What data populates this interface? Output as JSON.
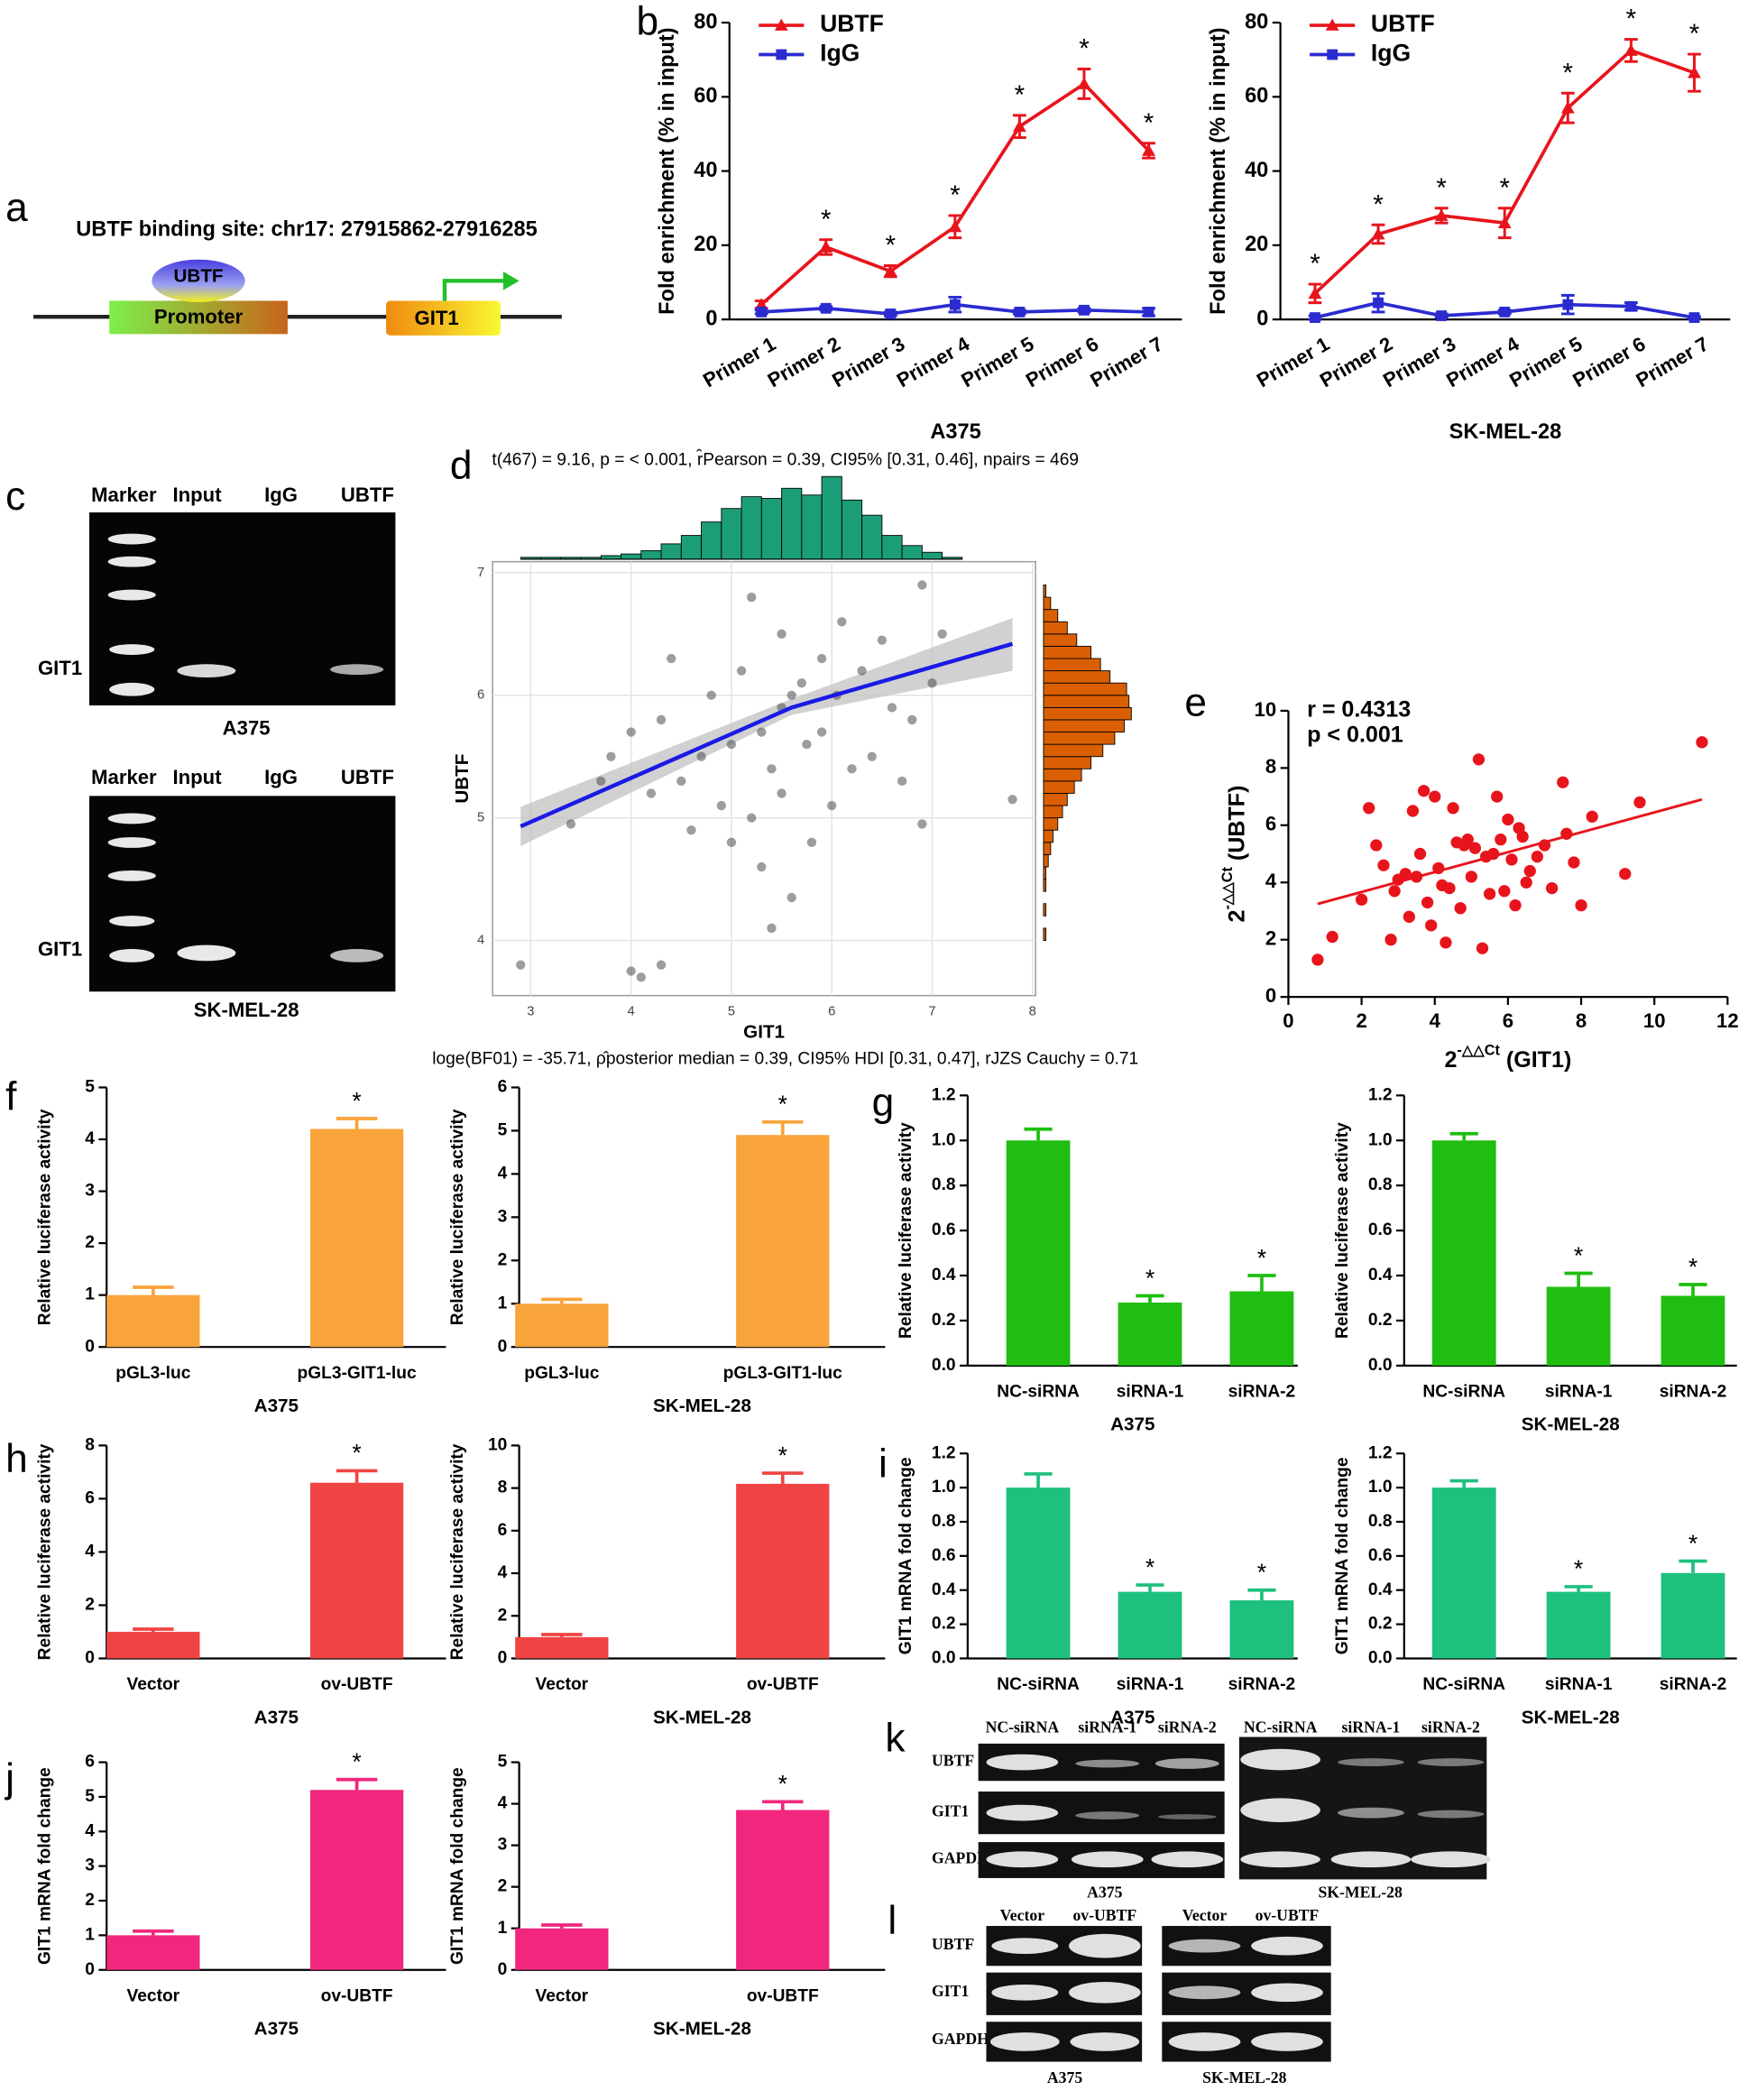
{
  "panel_letters": {
    "a": "a",
    "b": "b",
    "c": "c",
    "d": "d",
    "e": "e",
    "f": "f",
    "g": "g",
    "h": "h",
    "i": "i",
    "j": "j",
    "k": "k",
    "l": "l"
  },
  "diagram_a": {
    "title": "UBTF binding site: chr17: 27915862-27916285",
    "factor": "UBTF",
    "promoter": "Promoter",
    "gene": "GIT1"
  },
  "gel_c": [
    {
      "lanes": [
        "Marker",
        "Input",
        "IgG",
        "UBTF"
      ],
      "band_label": "GIT1",
      "cell_line": "A375"
    },
    {
      "lanes": [
        "Marker",
        "Input",
        "IgG",
        "UBTF"
      ],
      "band_label": "GIT1",
      "cell_line": "SK-MEL-28"
    }
  ],
  "blot_k": {
    "lanes": [
      "NC-siRNA",
      "siRNA-1",
      "siRNA-2"
    ],
    "rows": [
      "UBTF",
      "GIT1",
      "GAPDH"
    ],
    "cell_lines": [
      "A375",
      "SK-MEL-28"
    ]
  },
  "blot_l": {
    "lanes": [
      "Vector",
      "ov-UBTF"
    ],
    "rows": [
      "UBTF",
      "GIT1",
      "GAPDH"
    ],
    "cell_lines": [
      "A375",
      "SK-MEL-28"
    ]
  },
  "chart_data": [
    {
      "type": "line",
      "y_label": "Fold enrichment (% in input)",
      "subtitle": "A375",
      "legend": "upper left",
      "categories": [
        "Primer 1",
        "Primer 2",
        "Primer 3",
        "Primer 4",
        "Primer 5",
        "Primer 6",
        "Primer 7"
      ],
      "ylim": [
        0,
        80
      ],
      "yticks": [
        0,
        20,
        40,
        60,
        80
      ],
      "series": [
        {
          "name": "UBTF",
          "color": "#e8141c",
          "marker": "triangle",
          "values": [
            4,
            19.5,
            13,
            25,
            52,
            63.5,
            45.5
          ],
          "errors": [
            1,
            2,
            1.5,
            3,
            3,
            4,
            2
          ],
          "sig_labels": [
            null,
            "*",
            "*",
            "*",
            "*",
            "*",
            "*"
          ]
        },
        {
          "name": "IgG",
          "color": "#2b2bd0",
          "marker": "square",
          "values": [
            2,
            3,
            1.5,
            4,
            2,
            2.5,
            2
          ],
          "errors": [
            0.5,
            0.5,
            0.5,
            2,
            0.5,
            0.5,
            1
          ]
        }
      ]
    },
    {
      "type": "line",
      "y_label": "Fold enrichment (% in input)",
      "subtitle": "SK-MEL-28",
      "legend": "upper left",
      "categories": [
        "Primer 1",
        "Primer 2",
        "Primer 3",
        "Primer 4",
        "Primer 5",
        "Primer 6",
        "Primer 7"
      ],
      "ylim": [
        0,
        80
      ],
      "yticks": [
        0,
        20,
        40,
        60,
        80
      ],
      "series": [
        {
          "name": "UBTF",
          "color": "#e8141c",
          "marker": "triangle",
          "values": [
            7,
            23,
            28,
            26,
            57,
            72.5,
            66.5
          ],
          "errors": [
            2.5,
            2.5,
            2,
            4,
            4,
            3,
            5
          ],
          "sig_labels": [
            "*",
            "*",
            "*",
            "*",
            "*",
            "*",
            "*"
          ]
        },
        {
          "name": "IgG",
          "color": "#2b2bd0",
          "marker": "square",
          "values": [
            0.5,
            4.5,
            1,
            2,
            4,
            3.5,
            0.5
          ],
          "errors": [
            0.5,
            2.5,
            0.5,
            0.5,
            2.5,
            1,
            0.3
          ]
        }
      ]
    },
    {
      "type": "scatter_marginal",
      "title": "t(467) = 9.16, p = < 0.001, r̂Pearson = 0.39, CI95% [0.31, 0.46], npairs = 469",
      "caption": "loge(BF01) = -35.71, ρ̂posterior median = 0.39, CI95% HDI [0.31, 0.47], rJZS Cauchy = 0.71",
      "x_label": "GIT1",
      "y_label": "UBTF",
      "xlim": [
        2.62,
        8.03
      ],
      "ylim": [
        3.55,
        7.09
      ],
      "xticks": [
        3,
        4,
        5,
        6,
        7,
        8
      ],
      "yticks": [
        4,
        5,
        6,
        7
      ],
      "grid": true,
      "color": "#4d4d4d",
      "x": [
        2.9,
        4.0,
        4.1,
        4.3,
        3.4,
        5.4,
        5.6,
        5.0,
        5.2,
        4.5,
        4.7,
        5.0,
        5.3,
        5.5,
        5.7,
        5.9,
        6.1,
        5.5,
        5.2,
        6.5,
        6.9,
        7.1,
        7.0,
        6.8,
        6.2,
        6.0,
        5.8,
        6.4,
        4.8,
        4.3,
        4.0,
        3.8,
        4.2,
        4.6,
        5.6,
        5.9,
        5.4,
        5.1,
        6.3,
        6.6,
        7.8,
        6.9,
        5.3,
        4.9,
        5.75,
        6.05,
        4.4,
        5.5,
        6.7,
        3.7
      ],
      "y": [
        3.8,
        3.75,
        3.7,
        3.8,
        4.95,
        4.1,
        4.35,
        4.8,
        5.0,
        5.3,
        5.5,
        5.6,
        5.7,
        5.9,
        6.1,
        6.3,
        6.6,
        6.5,
        6.8,
        6.45,
        6.9,
        6.5,
        6.1,
        5.8,
        5.4,
        5.1,
        4.8,
        5.5,
        6.0,
        5.8,
        5.7,
        5.5,
        5.2,
        4.9,
        6.0,
        5.7,
        5.4,
        6.2,
        6.2,
        5.9,
        5.15,
        4.95,
        4.6,
        5.1,
        5.6,
        6.0,
        6.3,
        5.2,
        5.3,
        5.3
      ],
      "fit": {
        "color": "#1a1ae6",
        "band_color": "#bdbdbd",
        "x": [
          2.9,
          5.6,
          7.8
        ],
        "y": [
          4.93,
          5.9,
          6.42
        ],
        "lower": [
          4.77,
          5.84,
          6.2
        ],
        "upper": [
          5.09,
          5.97,
          6.63
        ]
      },
      "top_hist": {
        "color": "#1b9e77",
        "bins": [
          2.9,
          3.1,
          3.3,
          3.5,
          3.7,
          3.9,
          4.1,
          4.3,
          4.5,
          4.7,
          4.9,
          5.1,
          5.3,
          5.5,
          5.7,
          5.9,
          6.1,
          6.3,
          6.5,
          6.7,
          6.9,
          7.1,
          7.3
        ],
        "counts": [
          1,
          1,
          1,
          1,
          2,
          3,
          5,
          9,
          14,
          22,
          30,
          37,
          36,
          42,
          38,
          49,
          35,
          26,
          14,
          8,
          4,
          1
        ]
      },
      "right_hist": {
        "color": "#d95f02",
        "bins": [
          4.0,
          4.1,
          4.2,
          4.3,
          4.4,
          4.5,
          4.6,
          4.7,
          4.8,
          4.9,
          5.0,
          5.1,
          5.2,
          5.3,
          5.4,
          5.5,
          5.6,
          5.7,
          5.8,
          5.9,
          6.0,
          6.1,
          6.2,
          6.3,
          6.4,
          6.5,
          6.6,
          6.7,
          6.8,
          6.9
        ],
        "counts": [
          1,
          0,
          1,
          0,
          1,
          1,
          2,
          3,
          4,
          6,
          8,
          10,
          13,
          16,
          20,
          25,
          30,
          34,
          37,
          36,
          35,
          28,
          24,
          20,
          14,
          10,
          6,
          3,
          1
        ]
      }
    },
    {
      "type": "scatter",
      "color": "#e8141c",
      "annotations": [
        "r = 0.4313",
        "p < 0.001"
      ],
      "x_label": {
        "base": "2",
        "sup": "-△△Ct",
        "rest": " (GIT1)"
      },
      "y_label": {
        "base": "2",
        "sup": "-△△Ct",
        "rest": " (UBTF)"
      },
      "xlim": [
        0,
        12
      ],
      "ylim": [
        0,
        10
      ],
      "xticks": [
        0,
        2,
        4,
        6,
        8,
        10,
        12
      ],
      "yticks": [
        0,
        2,
        4,
        6,
        8,
        10
      ],
      "x": [
        0.8,
        1.2,
        2.0,
        2.2,
        2.4,
        2.6,
        2.8,
        3.0,
        3.2,
        3.3,
        3.4,
        3.5,
        3.6,
        3.7,
        3.8,
        4.0,
        4.1,
        4.2,
        4.3,
        4.5,
        4.6,
        4.7,
        4.8,
        4.9,
        5.0,
        5.1,
        5.2,
        5.3,
        5.4,
        5.5,
        5.6,
        5.7,
        5.8,
        5.9,
        6.0,
        6.1,
        6.2,
        6.4,
        6.5,
        6.6,
        6.8,
        7.0,
        7.2,
        7.5,
        7.6,
        7.8,
        8.0,
        8.3,
        9.2,
        9.6,
        11.3,
        2.9,
        3.9,
        4.4,
        6.3
      ],
      "y": [
        1.3,
        2.1,
        3.4,
        6.6,
        5.3,
        4.6,
        2.0,
        4.1,
        4.3,
        2.8,
        6.5,
        4.2,
        5.0,
        7.2,
        3.3,
        7.0,
        4.5,
        3.9,
        1.9,
        6.6,
        5.4,
        3.1,
        5.3,
        5.5,
        4.2,
        5.2,
        8.3,
        1.7,
        4.9,
        3.6,
        5.0,
        7.0,
        5.5,
        3.7,
        6.2,
        4.8,
        3.2,
        5.6,
        4.0,
        4.4,
        4.9,
        5.3,
        3.8,
        7.5,
        5.7,
        4.7,
        3.2,
        6.3,
        4.3,
        6.8,
        8.9,
        3.7,
        2.5,
        3.8,
        5.9
      ],
      "fit": {
        "x": [
          0.8,
          11.3
        ],
        "y": [
          3.25,
          6.9
        ]
      }
    },
    {
      "type": "bar",
      "y_label": "Relative luciferase activity",
      "subtitle": "A375",
      "color": "#f9a33b",
      "categories": [
        "pGL3-luc",
        "pGL3-GIT1-luc"
      ],
      "values": [
        1.0,
        4.2
      ],
      "errors": [
        0.15,
        0.2
      ],
      "sig_labels": [
        null,
        "*"
      ],
      "ylim": [
        0,
        5
      ],
      "yticks": [
        0,
        1,
        2,
        3,
        4,
        5
      ]
    },
    {
      "type": "bar",
      "y_label": "Relative luciferase activity",
      "subtitle": "SK-MEL-28",
      "color": "#f9a33b",
      "categories": [
        "pGL3-luc",
        "pGL3-GIT1-luc"
      ],
      "values": [
        1.0,
        4.9
      ],
      "errors": [
        0.1,
        0.3
      ],
      "sig_labels": [
        null,
        "*"
      ],
      "ylim": [
        0,
        6
      ],
      "yticks": [
        0,
        1,
        2,
        3,
        4,
        5,
        6
      ]
    },
    {
      "type": "bar",
      "y_label": "Relative luciferase activity",
      "subtitle": "A375",
      "color": "#1fbe10",
      "categories": [
        "NC-siRNA",
        "siRNA-1",
        "siRNA-2"
      ],
      "values": [
        1.0,
        0.28,
        0.33
      ],
      "errors": [
        0.05,
        0.03,
        0.07
      ],
      "sig_labels": [
        null,
        "*",
        "*"
      ],
      "ylim": [
        0,
        1.2
      ],
      "yticks": [
        {
          "value": 0,
          "label": "0.0"
        },
        0.2,
        0.4,
        0.6,
        0.8,
        {
          "value": 1,
          "label": "1.0"
        },
        1.2
      ]
    },
    {
      "type": "bar",
      "y_label": "Relative luciferase activity",
      "subtitle": "SK-MEL-28",
      "color": "#1fbe10",
      "categories": [
        "NC-siRNA",
        "siRNA-1",
        "siRNA-2"
      ],
      "values": [
        1.0,
        0.35,
        0.31
      ],
      "errors": [
        0.03,
        0.06,
        0.05
      ],
      "sig_labels": [
        null,
        "*",
        "*"
      ],
      "ylim": [
        0,
        1.2
      ],
      "yticks": [
        {
          "value": 0,
          "label": "0.0"
        },
        0.2,
        0.4,
        0.6,
        0.8,
        {
          "value": 1,
          "label": "1.0"
        },
        1.2
      ]
    },
    {
      "type": "bar",
      "y_label": "Relative luciferase activity",
      "subtitle": "A375",
      "color": "#f04444",
      "categories": [
        "Vector",
        "ov-UBTF"
      ],
      "values": [
        1.0,
        6.6
      ],
      "errors": [
        0.1,
        0.45
      ],
      "sig_labels": [
        null,
        "*"
      ],
      "ylim": [
        0,
        8
      ],
      "yticks": [
        0,
        2,
        4,
        6,
        8
      ]
    },
    {
      "type": "bar",
      "y_label": "Relative luciferase activity",
      "subtitle": "SK-MEL-28",
      "color": "#f04444",
      "categories": [
        "Vector",
        "ov-UBTF"
      ],
      "values": [
        1.0,
        8.2
      ],
      "errors": [
        0.12,
        0.5
      ],
      "sig_labels": [
        null,
        "*"
      ],
      "ylim": [
        0,
        10
      ],
      "yticks": [
        0,
        2,
        4,
        6,
        8,
        10
      ]
    },
    {
      "type": "bar",
      "y_label": "GIT1 mRNA fold change",
      "subtitle": "A375",
      "color": "#1dc07d",
      "categories": [
        "NC-siRNA",
        "siRNA-1",
        "siRNA-2"
      ],
      "values": [
        1.0,
        0.39,
        0.34
      ],
      "errors": [
        0.08,
        0.04,
        0.06
      ],
      "sig_labels": [
        null,
        "*",
        "*"
      ],
      "ylim": [
        0,
        1.2
      ],
      "yticks": [
        {
          "value": 0,
          "label": "0.0"
        },
        0.2,
        0.4,
        0.6,
        0.8,
        {
          "value": 1,
          "label": "1.0"
        },
        1.2
      ]
    },
    {
      "type": "bar",
      "y_label": "GIT1 mRNA fold change",
      "subtitle": "SK-MEL-28",
      "color": "#1dc07d",
      "categories": [
        "NC-siRNA",
        "siRNA-1",
        "siRNA-2"
      ],
      "values": [
        1.0,
        0.39,
        0.5
      ],
      "errors": [
        0.04,
        0.03,
        0.07
      ],
      "sig_labels": [
        null,
        "*",
        "*"
      ],
      "ylim": [
        0,
        1.2
      ],
      "yticks": [
        {
          "value": 0,
          "label": "0.0"
        },
        0.2,
        0.4,
        0.6,
        0.8,
        {
          "value": 1,
          "label": "1.0"
        },
        1.2
      ]
    },
    {
      "type": "bar",
      "y_label": "GIT1 mRNA fold change",
      "subtitle": "A375",
      "color": "#f0277c",
      "categories": [
        "Vector",
        "ov-UBTF"
      ],
      "values": [
        1.0,
        5.2
      ],
      "errors": [
        0.12,
        0.3
      ],
      "sig_labels": [
        null,
        "*"
      ],
      "ylim": [
        0,
        6
      ],
      "yticks": [
        0,
        1,
        2,
        3,
        4,
        5,
        6
      ]
    },
    {
      "type": "bar",
      "y_label": "GIT1 mRNA fold change",
      "subtitle": "SK-MEL-28",
      "color": "#f0277c",
      "categories": [
        "Vector",
        "ov-UBTF"
      ],
      "values": [
        1.0,
        3.85
      ],
      "errors": [
        0.08,
        0.2
      ],
      "sig_labels": [
        null,
        "*"
      ],
      "ylim": [
        0,
        5
      ],
      "yticks": [
        0,
        1,
        2,
        3,
        4,
        5
      ]
    }
  ]
}
